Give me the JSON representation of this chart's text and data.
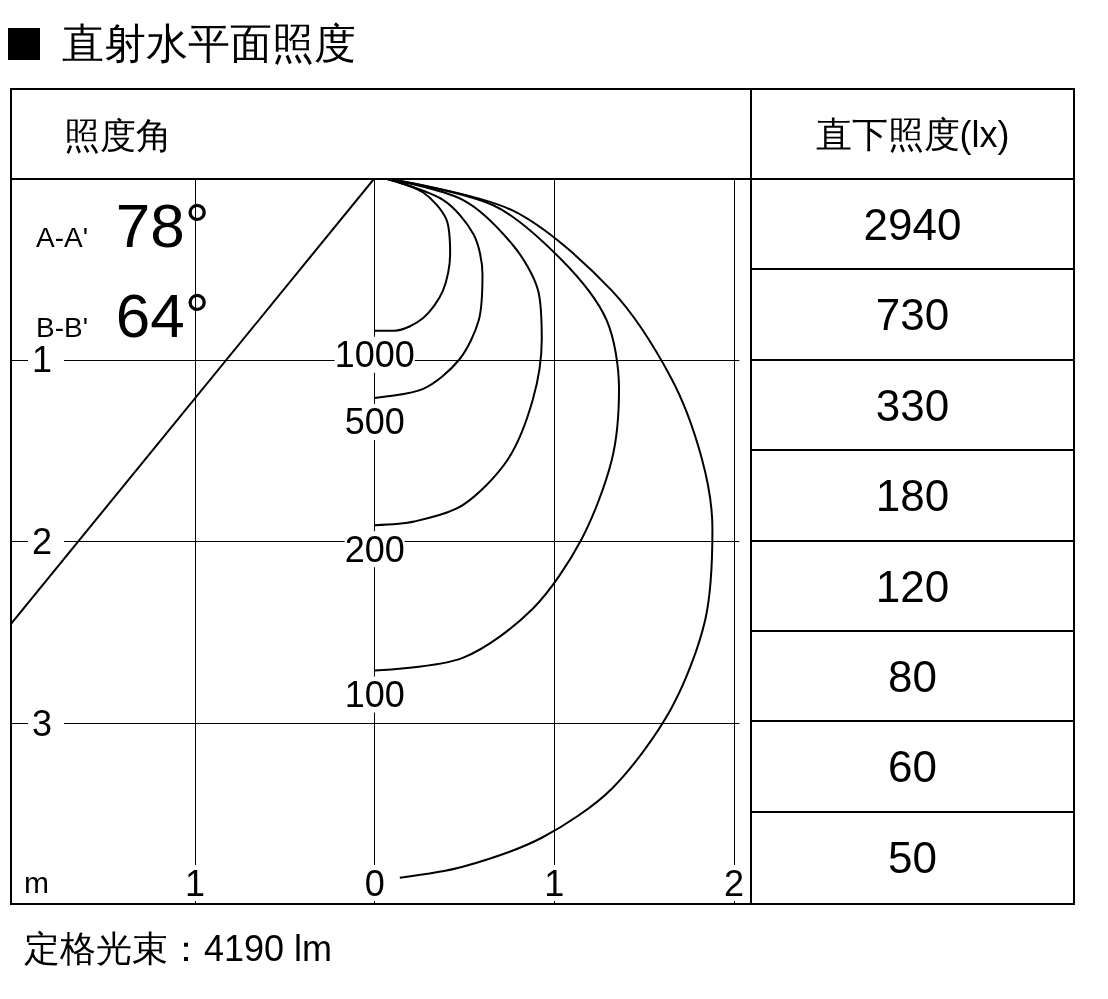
{
  "chart_data": [
    {
      "type": "line",
      "title": "直射水平面照度",
      "xlabel": "m",
      "xlim": [
        -2.03,
        2.03
      ],
      "xticks": [
        {
          "value": -1,
          "label": "1"
        },
        0,
        1,
        2
      ],
      "ylim": [
        4,
        0
      ],
      "yticks": [
        1,
        2,
        3
      ],
      "grid": true,
      "marker": "none",
      "line_style": "solid",
      "series": [
        {
          "color": "#000000",
          "x": [
            0.05,
            0.27,
            0.4,
            0.42,
            0.38,
            0.27,
            0.11,
            0
          ],
          "values": [
            0,
            0.08,
            0.23,
            0.42,
            0.62,
            0.77,
            0.84,
            0.84
          ]
        },
        {
          "color": "#000000",
          "x": [
            0.05,
            0.38,
            0.55,
            0.6,
            0.58,
            0.47,
            0.27,
            0
          ],
          "values": [
            0,
            0.12,
            0.31,
            0.53,
            0.78,
            1.0,
            1.16,
            1.21
          ]
        },
        {
          "color": "#000000",
          "x": [
            0.05,
            0.49,
            0.77,
            0.91,
            0.93,
            0.88,
            0.74,
            0.49,
            0.22,
            0
          ],
          "values": [
            0,
            0.12,
            0.37,
            0.62,
            0.89,
            1.22,
            1.55,
            1.8,
            1.89,
            1.91
          ]
        },
        {
          "color": "#000000",
          "x": [
            0.05,
            0.66,
            1.04,
            1.29,
            1.36,
            1.32,
            1.15,
            0.88,
            0.49,
            0
          ],
          "values": [
            0,
            0.15,
            0.45,
            0.78,
            1.16,
            1.55,
            1.99,
            2.37,
            2.64,
            2.71
          ]
        },
        {
          "color": "#000000",
          "x": [
            0.05,
            0.77,
            1.32,
            1.65,
            1.82,
            1.88,
            1.84,
            1.65,
            1.32,
            0.93,
            0.49,
            0.14
          ],
          "values": [
            0,
            0.18,
            0.62,
            1.1,
            1.54,
            1.93,
            2.43,
            2.92,
            3.36,
            3.63,
            3.79,
            3.85
          ]
        },
        {
          "color": "#000000",
          "x": [
            0,
            -2.03
          ],
          "values": [
            0,
            2.46
          ]
        }
      ],
      "annotations": [
        "照度角",
        "A-A' 78°",
        "B-B' 64°",
        "定格光束：4190 lm",
        "1000",
        "500",
        "200",
        "100"
      ]
    },
    {
      "type": "other",
      "title": "直下照度(lx)",
      "annotations": [
        "2940",
        "730",
        "330",
        "180",
        "120",
        "80",
        "60",
        "50"
      ]
    }
  ]
}
